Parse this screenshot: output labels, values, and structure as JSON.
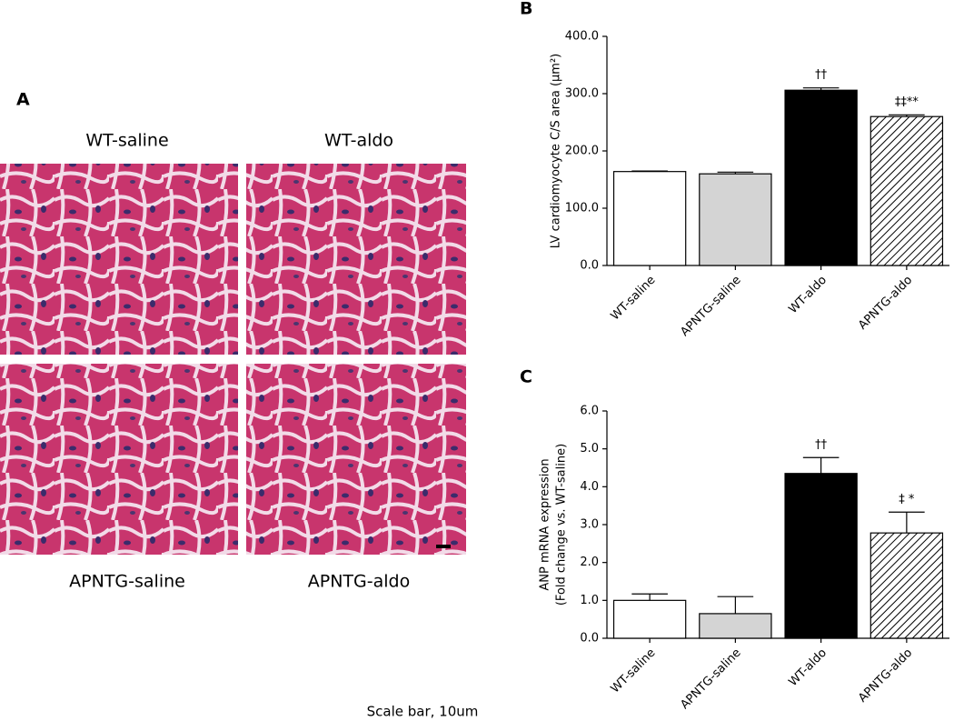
{
  "panel_a": {
    "label": "A",
    "titles": [
      "WT-saline",
      "WT-aldo",
      "APNTG-saline",
      "APNTG-aldo"
    ],
    "scale_note": "Scale bar, 10um"
  },
  "chart_data": [
    {
      "type": "bar",
      "panel": "B",
      "ylabel": [
        "LV cardiomyocyte C/S area (μm²)"
      ],
      "categories": [
        "WT-saline",
        "APNTG-saline",
        "WT-aldo",
        "APNTG-aldo"
      ],
      "values": [
        164,
        160,
        306,
        260
      ],
      "errors": [
        1,
        3,
        4,
        3
      ],
      "colors": [
        "#ffffff",
        "#d4d4d4",
        "#000000",
        "#ffffff"
      ],
      "hatched": [
        false,
        false,
        false,
        true
      ],
      "annotations": [
        null,
        null,
        "††",
        "‡‡**"
      ],
      "ylim": [
        0,
        400
      ],
      "yticks": [
        {
          "value": 0,
          "label": "0.0"
        },
        {
          "value": 100,
          "label": "100.0"
        },
        {
          "value": 200,
          "label": "200.0"
        },
        {
          "value": 300,
          "label": "300.0"
        },
        {
          "value": 400,
          "label": "400.0"
        }
      ],
      "grid": false
    },
    {
      "type": "bar",
      "panel": "C",
      "ylabel": [
        "ANP mRNA expression",
        "(Fold change vs. WT-saline)"
      ],
      "categories": [
        "WT-saline",
        "APNTG-saline",
        "WT-aldo",
        "APNTG-aldo"
      ],
      "values": [
        1.0,
        0.65,
        4.35,
        2.78
      ],
      "errors": [
        0.17,
        0.45,
        0.42,
        0.55
      ],
      "colors": [
        "#ffffff",
        "#d4d4d4",
        "#000000",
        "#ffffff"
      ],
      "hatched": [
        false,
        false,
        false,
        true
      ],
      "annotations": [
        null,
        null,
        "††",
        "‡ *"
      ],
      "ylim": [
        0,
        6
      ],
      "yticks": [
        {
          "value": 0,
          "label": "0.0"
        },
        {
          "value": 1,
          "label": "1.0"
        },
        {
          "value": 2,
          "label": "2.0"
        },
        {
          "value": 3,
          "label": "3.0"
        },
        {
          "value": 4,
          "label": "4.0"
        },
        {
          "value": 5,
          "label": "5.0"
        },
        {
          "value": 6,
          "label": "6.0"
        }
      ],
      "grid": false
    }
  ]
}
